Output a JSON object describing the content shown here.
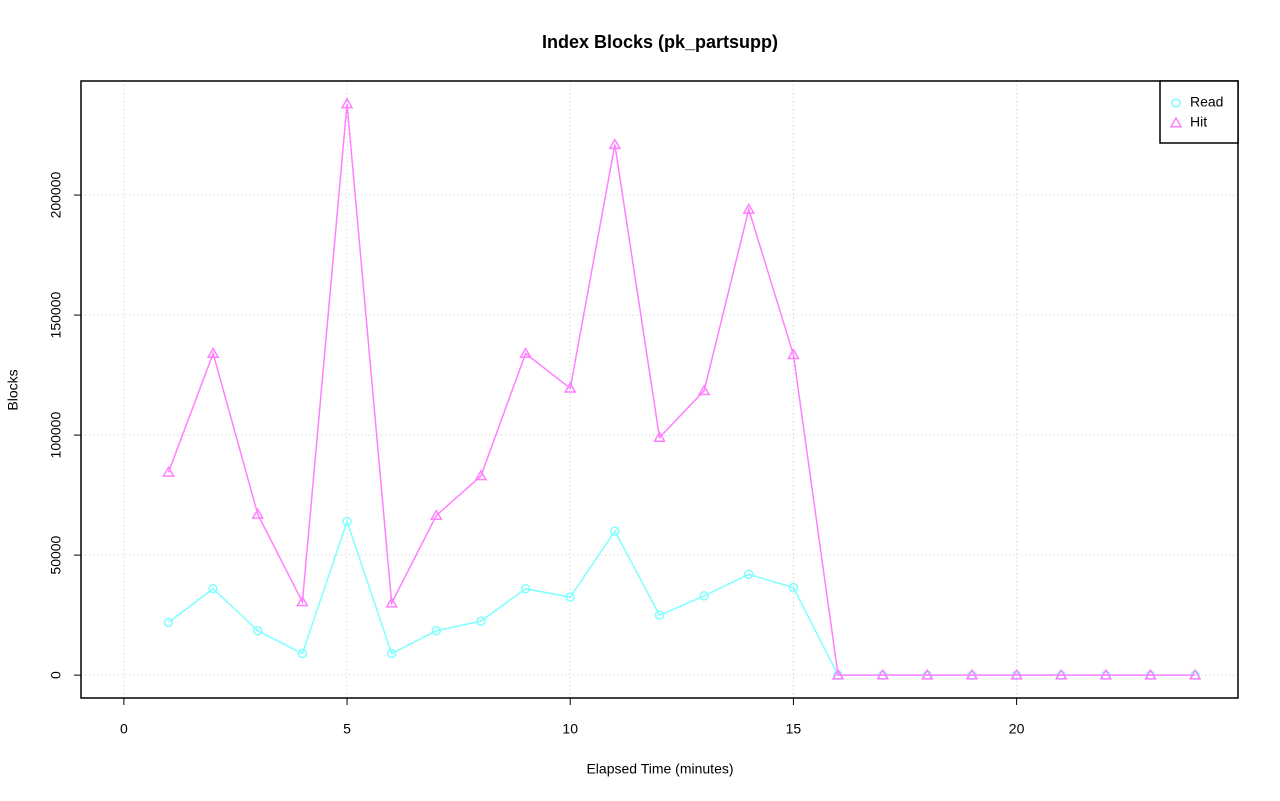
{
  "chart_data": {
    "type": "line",
    "title": "Index Blocks (pk_partsupp)",
    "x_label": "Elapsed Time (minutes)",
    "y_label": "Blocks",
    "x": [
      1,
      2,
      3,
      4,
      5,
      6,
      7,
      8,
      9,
      10,
      11,
      12,
      13,
      14,
      15,
      16,
      17,
      18,
      19,
      20,
      21,
      22,
      23,
      24
    ],
    "series": [
      {
        "name": "Read",
        "color": "#80ffff",
        "marker": "circle",
        "values": [
          22000,
          36000,
          18500,
          9000,
          64000,
          9000,
          18500,
          22500,
          36000,
          32500,
          60000,
          25000,
          33000,
          42000,
          36500,
          0,
          0,
          0,
          0,
          0,
          0,
          0,
          0,
          0
        ]
      },
      {
        "name": "Hit",
        "color": "#ff80ff",
        "marker": "triangle",
        "values": [
          84500,
          134000,
          67000,
          30500,
          238000,
          30000,
          66500,
          83000,
          134000,
          119500,
          221000,
          99000,
          118500,
          194000,
          133500,
          0,
          0,
          0,
          0,
          0,
          0,
          0,
          0,
          0
        ]
      }
    ],
    "xlim": [
      -0.96,
      24.96
    ],
    "xticks": [
      0,
      5,
      10,
      15,
      20
    ],
    "ylim": [
      -9520,
      247520
    ],
    "yticks": [
      0,
      50000,
      100000,
      150000,
      200000
    ],
    "grid": true,
    "legend": "top-right"
  }
}
